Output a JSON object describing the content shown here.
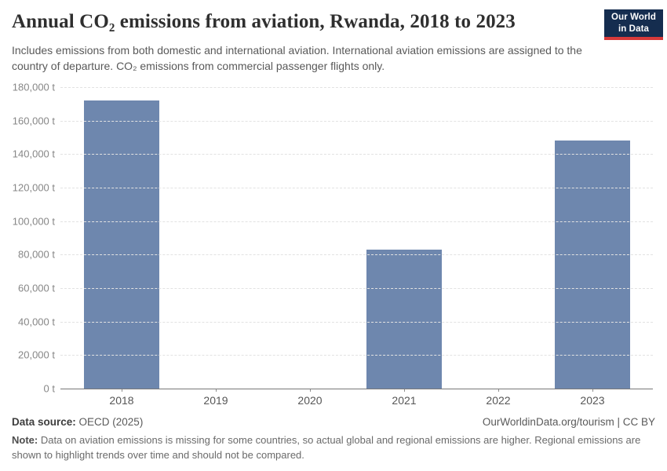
{
  "header": {
    "title": "Annual CO₂ emissions from aviation, Rwanda, 2018 to 2023",
    "subtitle": "Includes emissions from both domestic and international aviation. International aviation emissions are assigned to the country of departure. CO₂ emissions from commercial passenger flights only.",
    "logo": {
      "line1": "Our World",
      "line2": "in Data"
    }
  },
  "chart_data": {
    "type": "bar",
    "title": "Annual CO₂ emissions from aviation, Rwanda, 2018 to 2023",
    "categories": [
      "2018",
      "2019",
      "2020",
      "2021",
      "2022",
      "2023"
    ],
    "values": [
      172000,
      null,
      null,
      83000,
      null,
      148000
    ],
    "unit": "t",
    "xlabel": "",
    "ylabel": "",
    "ylim": [
      0,
      180000
    ],
    "ytick_interval": 20000,
    "ytick_labels": [
      "0 t",
      "20,000 t",
      "40,000 t",
      "60,000 t",
      "80,000 t",
      "100,000 t",
      "120,000 t",
      "140,000 t",
      "160,000 t",
      "180,000 t"
    ],
    "grid": "horizontal-dashed",
    "legend": "none",
    "bar_color": "#6e87ae",
    "missing_years": [
      "2019",
      "2020",
      "2022"
    ]
  },
  "footer": {
    "source_label": "Data source:",
    "source_value": " OECD (2025)",
    "link": "OurWorldinData.org/tourism | CC BY",
    "note_label": "Note:",
    "note_value": " Data on aviation emissions is missing for some countries, so actual global and regional emissions are higher. Regional emissions are shown to highlight trends over time and should not be compared."
  },
  "colors": {
    "bar": "#6e87ae",
    "gridline": "#e2e2e2",
    "axis": "#787878",
    "logo_bg": "#152d4f",
    "logo_accent": "#d73a3a",
    "title_text": "#2f2f2f"
  }
}
